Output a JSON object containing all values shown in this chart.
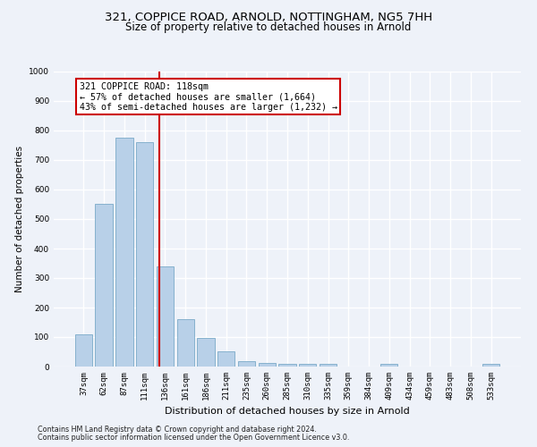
{
  "title1": "321, COPPICE ROAD, ARNOLD, NOTTINGHAM, NG5 7HH",
  "title2": "Size of property relative to detached houses in Arnold",
  "xlabel": "Distribution of detached houses by size in Arnold",
  "ylabel": "Number of detached properties",
  "categories": [
    "37sqm",
    "62sqm",
    "87sqm",
    "111sqm",
    "136sqm",
    "161sqm",
    "186sqm",
    "211sqm",
    "235sqm",
    "260sqm",
    "285sqm",
    "310sqm",
    "335sqm",
    "359sqm",
    "384sqm",
    "409sqm",
    "434sqm",
    "459sqm",
    "483sqm",
    "508sqm",
    "533sqm"
  ],
  "values": [
    110,
    550,
    775,
    760,
    340,
    160,
    97,
    52,
    18,
    13,
    10,
    10,
    10,
    0,
    0,
    10,
    0,
    0,
    0,
    0,
    10
  ],
  "bar_color": "#b8d0e8",
  "bar_edge_color": "#7aaac8",
  "bar_linewidth": 0.6,
  "vline_x_idx": 3.72,
  "vline_color": "#cc0000",
  "annotation_text": "321 COPPICE ROAD: 118sqm\n← 57% of detached houses are smaller (1,664)\n43% of semi-detached houses are larger (1,232) →",
  "annotation_box_color": "#ffffff",
  "annotation_box_edge": "#cc0000",
  "ylim": [
    0,
    1000
  ],
  "yticks": [
    0,
    100,
    200,
    300,
    400,
    500,
    600,
    700,
    800,
    900,
    1000
  ],
  "footer1": "Contains HM Land Registry data © Crown copyright and database right 2024.",
  "footer2": "Contains public sector information licensed under the Open Government Licence v3.0.",
  "bg_color": "#eef2f9",
  "plot_bg_color": "#eef2f9",
  "grid_color": "#ffffff",
  "title_fontsize": 9.5,
  "subtitle_fontsize": 8.5,
  "tick_fontsize": 6.5,
  "ylabel_fontsize": 7.5,
  "xlabel_fontsize": 8.0,
  "footer_fontsize": 5.8,
  "ann_fontsize": 7.2
}
